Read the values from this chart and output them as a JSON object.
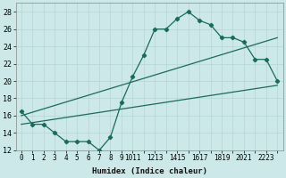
{
  "xlabel": "Humidex (Indice chaleur)",
  "ylabel": "",
  "bg_color": "#cce8e8",
  "grid_color": "#b8d8d8",
  "line_color": "#1a6b5a",
  "xlim": [
    -0.5,
    23.5
  ],
  "ylim": [
    12,
    29
  ],
  "xtick_labels": [
    "0",
    "1",
    "2",
    "3",
    "4",
    "5",
    "6",
    "7",
    "8",
    "9",
    "1011",
    "1213",
    "1415",
    "1617",
    "1819",
    "2021",
    "2223"
  ],
  "yticks": [
    12,
    14,
    16,
    18,
    20,
    22,
    24,
    26,
    28
  ],
  "line1_x": [
    0,
    1,
    2,
    3,
    4,
    5,
    6,
    7,
    8,
    9,
    10,
    11,
    12,
    13,
    14,
    15,
    16,
    17,
    18,
    19,
    20,
    21,
    22,
    23
  ],
  "line1_y": [
    16.5,
    15,
    15,
    14,
    13,
    13,
    13,
    12,
    13.5,
    17.5,
    20.5,
    23,
    26,
    26,
    27.2,
    28,
    27,
    26.5,
    25,
    25,
    24.5,
    22.5,
    22.5,
    20
  ],
  "line2_x": [
    0,
    23
  ],
  "line2_y": [
    15,
    19.5
  ],
  "line3_x": [
    0,
    23
  ],
  "line3_y": [
    16,
    25
  ]
}
